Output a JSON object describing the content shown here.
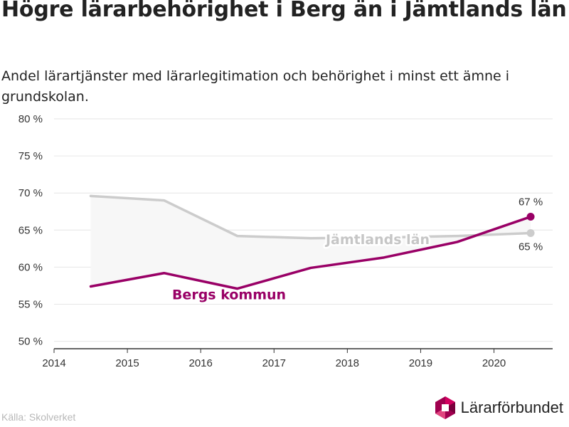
{
  "title": "Högre lärarbehörighet i Berg än i Jämtlands län",
  "subtitle": "Andel lärartjänster med lärarlegitimation och behörighet i minst ett ämne i grundskolan.",
  "source": "Källa: Skolverket",
  "brand": {
    "name": "Lärarförbundet",
    "logo_icon": "hexagon-logo-icon"
  },
  "colors": {
    "berg": "#990066",
    "lan": "#cccccc",
    "lan_label": "#c6c6c6",
    "axis": "#333333",
    "grid": "#e6e6e6",
    "area": "#f7f7f7"
  },
  "chart_data": {
    "type": "line",
    "x": [
      2014.5,
      2015.5,
      2016.5,
      2017.5,
      2018.5,
      2019.5,
      2020.5
    ],
    "series": [
      {
        "name": "Jämtlands län",
        "values": [
          69.6,
          69.0,
          64.2,
          63.9,
          64.0,
          64.2,
          64.6
        ],
        "end_label": "65 %"
      },
      {
        "name": "Bergs kommun",
        "values": [
          57.4,
          59.2,
          57.1,
          59.9,
          61.3,
          63.4,
          66.8
        ],
        "end_label": "67 %"
      }
    ],
    "xticks": [
      2014,
      2015,
      2016,
      2017,
      2018,
      2019,
      2020
    ],
    "xtick_labels": [
      "2014",
      "2015",
      "2016",
      "2017",
      "2018",
      "2019",
      "2020"
    ],
    "yticks": [
      50,
      55,
      60,
      65,
      70,
      75,
      80
    ],
    "ytick_labels": [
      "50 %",
      "55 %",
      "60 %",
      "65 %",
      "70 %",
      "75 %",
      "80 %"
    ],
    "xlim": [
      2014,
      2020.8
    ],
    "ylim": [
      49,
      80
    ],
    "grid": "horizontal",
    "legend": "direct labels on lines"
  }
}
